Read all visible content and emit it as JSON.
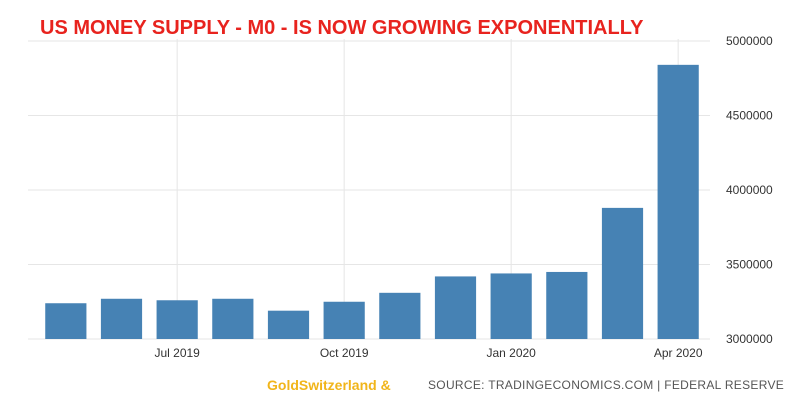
{
  "chart_data": {
    "type": "bar",
    "title": "US MONEY SUPPLY - M0 - IS NOW GROWING EXPONENTIALLY",
    "categories": [
      "May 2019",
      "Jun 2019",
      "Jul 2019",
      "Aug 2019",
      "Sep 2019",
      "Oct 2019",
      "Nov 2019",
      "Dec 2019",
      "Jan 2020",
      "Feb 2020",
      "Mar 2020",
      "Apr 2020"
    ],
    "values": [
      3240000,
      3270000,
      3260000,
      3270000,
      3190000,
      3250000,
      3310000,
      3420000,
      3440000,
      3450000,
      3880000,
      4840000
    ],
    "xticks": [
      {
        "category": "Jul 2019",
        "label": "Jul 2019"
      },
      {
        "category": "Oct 2019",
        "label": "Oct 2019"
      },
      {
        "category": "Jan 2020",
        "label": "Jan 2020"
      },
      {
        "category": "Apr 2020",
        "label": "Apr 2020"
      }
    ],
    "yticks": [
      3000000,
      3500000,
      4000000,
      4500000,
      5000000
    ],
    "ytick_labels": [
      "3000000",
      "3500000",
      "4000000",
      "4500000",
      "5000000"
    ],
    "ylim": [
      3000000,
      5000000
    ],
    "yaxis_side": "right",
    "grid": true,
    "bar_color": "#4682b4",
    "title_color": "#e8231e"
  },
  "footer": {
    "brand": "GoldSwitzerland &",
    "brand_color": "#f1b51a",
    "source": "SOURCE: TRADINGECONOMICS.COM | FEDERAL RESERVE"
  }
}
